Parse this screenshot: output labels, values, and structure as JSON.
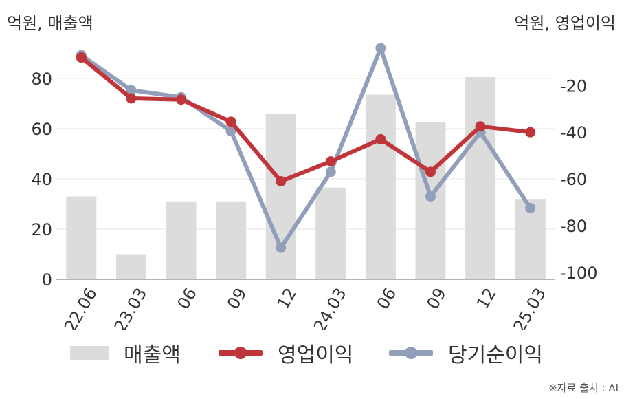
{
  "units": {
    "left": "억원, 매출액",
    "right": "억원, 영업이익"
  },
  "source": "※자료 출처 : AI",
  "colors": {
    "revenue": "#dcdcdc",
    "operating_profit": "#c0353a",
    "net_profit": "#929fba",
    "grid": "#e6e6e6",
    "axis": "#9a9a9a",
    "text": "#333333"
  },
  "legend": [
    {
      "label": "매출액",
      "series": "revenue"
    },
    {
      "label": "영업이익",
      "series": "operating_profit"
    },
    {
      "label": "당기순이익",
      "series": "net_profit"
    }
  ],
  "chart_data": {
    "type": "bar+line",
    "categories": [
      "22.06",
      "23.03",
      "06",
      "09",
      "12",
      "24.03",
      "06",
      "09",
      "12",
      "25.03"
    ],
    "series": [
      {
        "name": "매출액",
        "type": "bar",
        "axis": "left",
        "values": [
          33,
          10,
          31,
          31,
          66,
          36.5,
          73.5,
          62.5,
          80.5,
          32
        ]
      },
      {
        "name": "영업이익",
        "type": "line",
        "axis": "right",
        "values": [
          -8,
          -25.5,
          -26,
          -35.5,
          -61,
          -52.5,
          -43,
          -57,
          -37.5,
          -40
        ]
      },
      {
        "name": "당기순이익",
        "type": "line",
        "axis": "right",
        "values": [
          -7,
          -22,
          -25,
          -39.5,
          -89.5,
          -57,
          -4,
          -67.5,
          -40,
          -72.5
        ]
      }
    ],
    "y_left": {
      "ylim": [
        0,
        92
      ],
      "ticks": [
        0,
        20,
        40,
        60,
        80
      ]
    },
    "y_right": {
      "ylim": [
        -103,
        -4
      ],
      "ticks": [
        -100,
        -80,
        -60,
        -40,
        -20
      ]
    },
    "grid": true,
    "legend_position": "bottom"
  }
}
